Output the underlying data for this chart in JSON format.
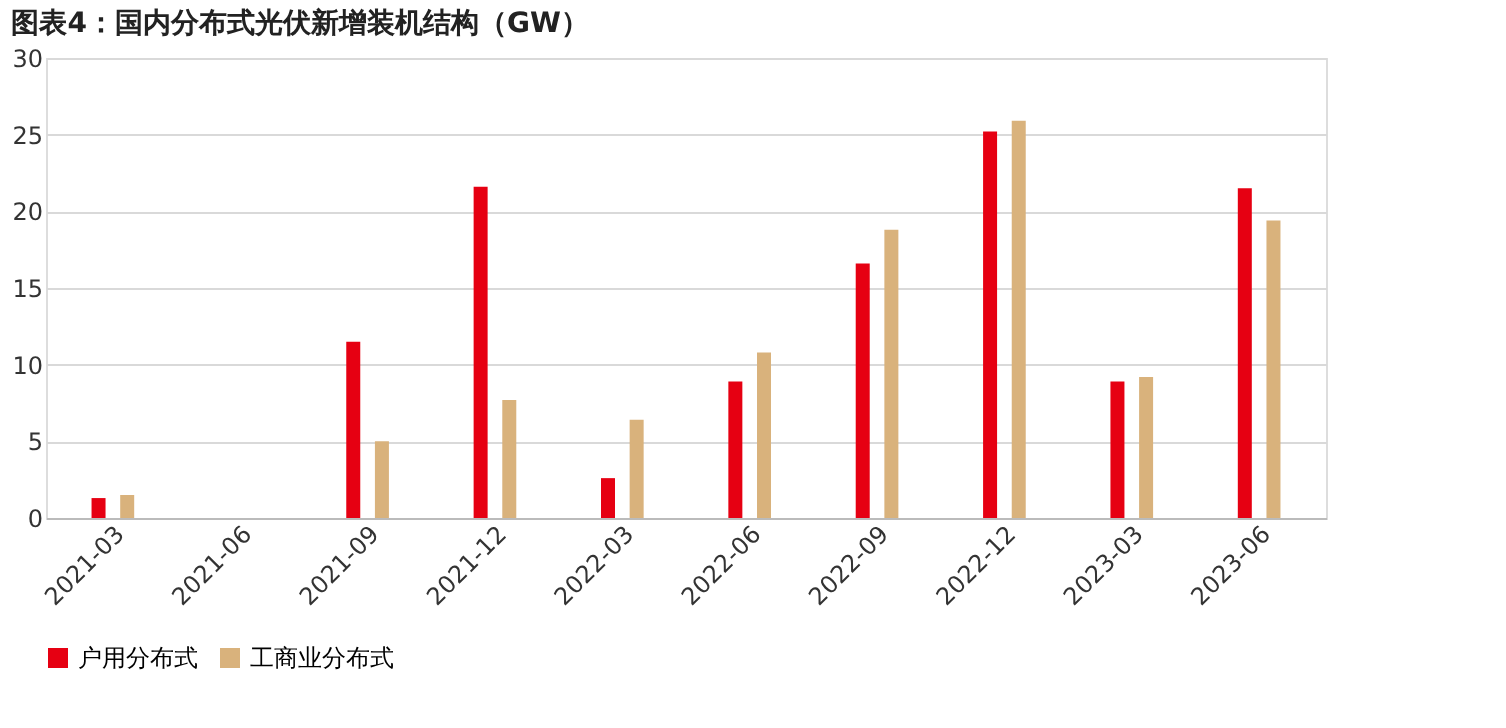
{
  "chart_data": {
    "type": "bar",
    "title": "图表4：国内分布式光伏新增装机结构（GW）",
    "categories": [
      "2021-03",
      "2021-06",
      "2021-09",
      "2021-12",
      "2022-03",
      "2022-06",
      "2022-09",
      "2022-12",
      "2023-03",
      "2023-06"
    ],
    "series": [
      {
        "name": "户用分布式",
        "color": "#e60012",
        "values": [
          1.3,
          null,
          11.5,
          21.6,
          2.6,
          8.9,
          16.6,
          25.2,
          8.9,
          21.5
        ]
      },
      {
        "name": "工商业分布式",
        "color": "#d9b27c",
        "values": [
          1.5,
          null,
          5.0,
          7.7,
          6.4,
          10.8,
          18.8,
          25.9,
          9.2,
          19.4
        ]
      }
    ],
    "ylim": [
      0,
      30
    ],
    "yticks": [
      0,
      5,
      10,
      15,
      20,
      25,
      30
    ],
    "grid": "y",
    "legend": "bottom"
  }
}
